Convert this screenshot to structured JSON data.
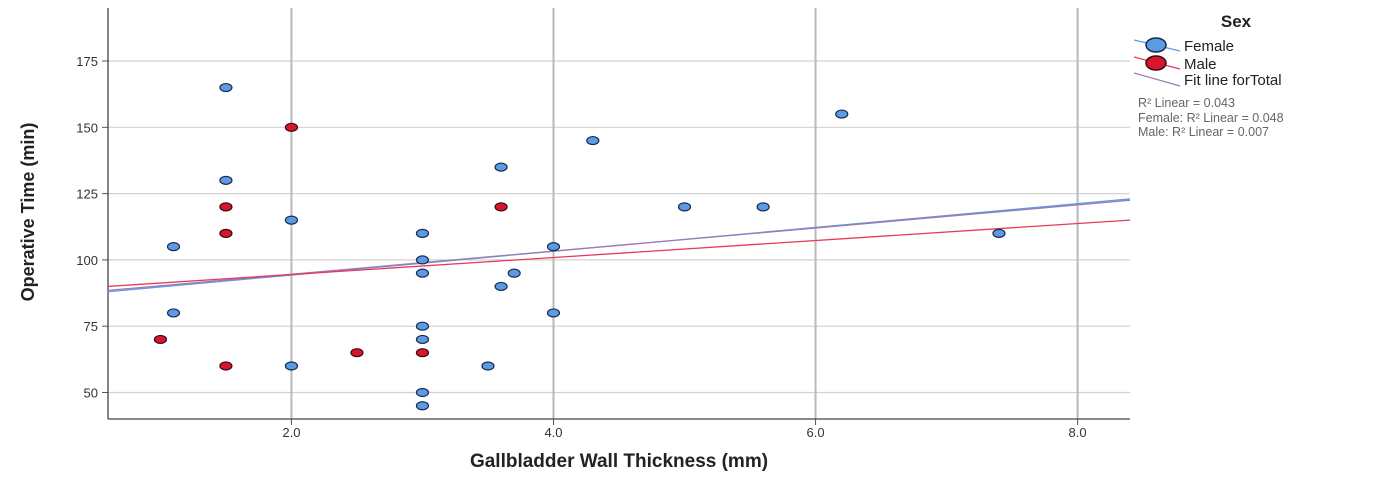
{
  "chart_data": {
    "type": "scatter",
    "xlabel": "Gallbladder Wall Thickness (mm)",
    "ylabel": "Operative Time (min)",
    "xlim": [
      0.6,
      8.4
    ],
    "ylim": [
      40,
      195
    ],
    "x_ticks": [
      2.0,
      4.0,
      6.0,
      8.0
    ],
    "x_tick_labels": [
      "2.0",
      "4.0",
      "6.0",
      "8.0"
    ],
    "y_ticks": [
      50,
      75,
      100,
      125,
      150,
      175
    ],
    "y_tick_labels": [
      "50",
      "75",
      "100",
      "125",
      "150",
      "175"
    ],
    "grid": true,
    "legend_position": "right",
    "legend": {
      "title": "Sex",
      "entries": [
        {
          "label": "Female",
          "marker": "circle",
          "color": "#5b9be6"
        },
        {
          "label": "Male",
          "marker": "circle",
          "color": "#d6162e"
        },
        {
          "label": "Fit line forTotal",
          "marker": "line",
          "color": "#a07ab0"
        }
      ]
    },
    "annotations": [
      "R² Linear = 0.043",
      "Female: R² Linear = 0.048",
      "Male: R² Linear = 0.007"
    ],
    "series": [
      {
        "name": "Female",
        "color": "#5b9be6",
        "points": [
          [
            1.5,
            165
          ],
          [
            1.5,
            130
          ],
          [
            1.1,
            105
          ],
          [
            1.1,
            80
          ],
          [
            2.0,
            115
          ],
          [
            2.0,
            60
          ],
          [
            3.0,
            110
          ],
          [
            3.0,
            100
          ],
          [
            3.0,
            95
          ],
          [
            3.0,
            75
          ],
          [
            3.0,
            70
          ],
          [
            3.0,
            50
          ],
          [
            3.0,
            45
          ],
          [
            3.5,
            60
          ],
          [
            3.6,
            135
          ],
          [
            3.6,
            90
          ],
          [
            3.7,
            95
          ],
          [
            4.0,
            105
          ],
          [
            4.0,
            80
          ],
          [
            4.3,
            145
          ],
          [
            5.0,
            120
          ],
          [
            5.6,
            120
          ],
          [
            6.2,
            155
          ],
          [
            7.4,
            110
          ]
        ]
      },
      {
        "name": "Male",
        "color": "#d6162e",
        "points": [
          [
            1.0,
            70
          ],
          [
            1.5,
            120
          ],
          [
            1.5,
            110
          ],
          [
            1.5,
            60
          ],
          [
            2.0,
            150
          ],
          [
            2.5,
            65
          ],
          [
            3.0,
            65
          ],
          [
            3.6,
            120
          ]
        ]
      }
    ],
    "fit_lines": [
      {
        "name": "Female",
        "color": "#5b9be6",
        "from": [
          0.6,
          88
        ],
        "to": [
          8.4,
          123
        ]
      },
      {
        "name": "Total",
        "color": "#a07ab0",
        "from": [
          0.6,
          88.5
        ],
        "to": [
          8.4,
          122.5
        ]
      },
      {
        "name": "Male",
        "color": "#e8395a",
        "from": [
          0.6,
          90
        ],
        "to": [
          8.4,
          115
        ]
      }
    ]
  }
}
